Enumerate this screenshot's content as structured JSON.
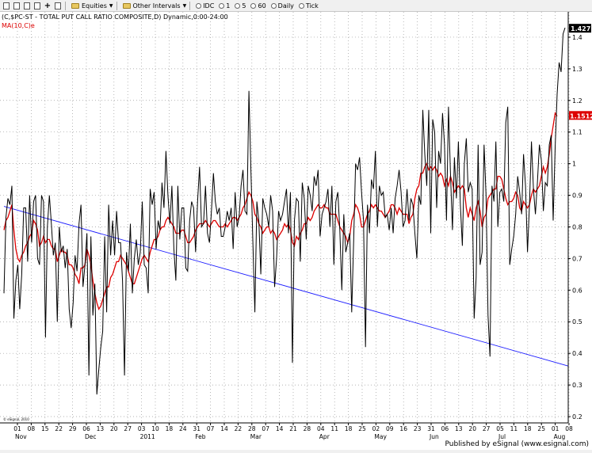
{
  "toolbar": {
    "equities_label": "Equities",
    "other_intervals_label": "Other Intervals",
    "intervals": [
      "IDC",
      "1",
      "5",
      "60",
      "Daily",
      "Tick"
    ]
  },
  "colors": {
    "price": "#000000",
    "ma": "#dd0000",
    "trend": "#1a1aff",
    "grid": "#9a9a9a"
  },
  "chart_data": {
    "type": "line",
    "title": "(C,$PC-ST - TOTAL PUT CALL RATIO COMPOSITE,D) Dynamic,0:00-24:00",
    "subtitle": "MA(10,C)e",
    "y_ticks": [
      "0.2",
      "0.3",
      "0.4",
      "0.5",
      "0.6",
      "0.7",
      "0.8",
      "0.9",
      "1",
      "1.1",
      "1.2",
      "1.3",
      "1.4"
    ],
    "ylim": [
      0.18,
      1.48
    ],
    "x_ticks": [
      "01",
      "08",
      "15",
      "22",
      "29",
      "06",
      "13",
      "20",
      "27",
      "03",
      "10",
      "18",
      "24",
      "31",
      "07",
      "14",
      "22",
      "28",
      "07",
      "14",
      "21",
      "28",
      "04",
      "11",
      "18",
      "25",
      "02",
      "09",
      "16",
      "23",
      "31",
      "06",
      "13",
      "20",
      "27",
      "05",
      "11",
      "18",
      "25",
      "01",
      "08"
    ],
    "month_labels": [
      "Nov",
      "Dec",
      "2011",
      "Feb",
      "Mar",
      "Apr",
      "May",
      "Jun",
      "Jul",
      "Aug"
    ],
    "last_price_label": "1.427",
    "ma_label": "1.1512",
    "copyright": "© eSignal, 2010",
    "footer": "Published by eSignal (www.esignal.com)",
    "series": [
      {
        "role": "price",
        "values": [
          0.59,
          0.83,
          0.89,
          0.87,
          0.93,
          0.51,
          0.63,
          0.68,
          0.54,
          0.65,
          0.86,
          0.86,
          0.69,
          0.9,
          0.75,
          0.88,
          0.9,
          0.7,
          0.68,
          0.9,
          0.88,
          0.45,
          0.8,
          0.9,
          0.81,
          0.71,
          0.75,
          0.5,
          0.8,
          0.72,
          0.74,
          0.67,
          0.73,
          0.54,
          0.48,
          0.56,
          0.71,
          0.66,
          0.81,
          0.87,
          0.61,
          0.68,
          0.78,
          0.33,
          0.77,
          0.52,
          0.62,
          0.27,
          0.35,
          0.42,
          0.47,
          0.77,
          0.53,
          0.87,
          0.71,
          0.82,
          0.71,
          0.85,
          0.75,
          0.75,
          0.63,
          0.33,
          0.72,
          0.66,
          0.81,
          0.59,
          0.7,
          0.76,
          0.68,
          0.72,
          0.88,
          0.68,
          0.67,
          0.59,
          0.92,
          0.87,
          0.91,
          0.73,
          0.82,
          0.79,
          0.94,
          0.86,
          1.04,
          0.9,
          0.81,
          0.93,
          0.73,
          0.63,
          0.93,
          0.76,
          0.86,
          0.86,
          0.67,
          0.66,
          0.82,
          0.88,
          0.86,
          0.72,
          0.88,
          0.99,
          0.8,
          0.81,
          0.93,
          0.78,
          0.75,
          0.85,
          0.97,
          0.88,
          0.84,
          0.86,
          0.77,
          0.77,
          0.8,
          0.85,
          0.82,
          0.86,
          0.73,
          0.91,
          0.8,
          0.83,
          0.93,
          0.98,
          0.85,
          0.84,
          1.23,
          0.98,
          0.75,
          0.53,
          0.88,
          0.82,
          0.65,
          0.89,
          0.86,
          0.84,
          0.8,
          0.9,
          0.85,
          0.61,
          0.7,
          0.85,
          0.82,
          0.84,
          0.88,
          0.92,
          0.78,
          0.91,
          0.37,
          0.82,
          0.89,
          0.88,
          0.69,
          0.94,
          0.89,
          0.76,
          0.93,
          0.9,
          0.85,
          0.96,
          0.93,
          0.98,
          0.77,
          0.84,
          0.86,
          0.88,
          0.92,
          0.8,
          0.93,
          0.68,
          0.88,
          0.91,
          0.79,
          0.6,
          0.84,
          0.72,
          0.75,
          0.78,
          0.53,
          0.76,
          1.0,
          0.98,
          1.02,
          0.91,
          0.82,
          0.42,
          0.87,
          0.78,
          0.95,
          0.92,
          1.04,
          0.8,
          0.93,
          0.9,
          0.91,
          0.83,
          0.84,
          0.79,
          0.86,
          0.78,
          0.89,
          0.93,
          0.98,
          0.91,
          0.8,
          0.82,
          0.92,
          0.82,
          0.89,
          0.87,
          0.78,
          0.7,
          0.9,
          0.87,
          1.17,
          1.03,
          0.93,
          1.17,
          0.78,
          1.14,
          1.1,
          0.86,
          1.04,
          1.0,
          1.16,
          1.06,
          0.82,
          1.18,
          0.97,
          0.79,
          1.02,
          0.89,
          1.07,
          0.87,
          0.74,
          1.0,
          1.08,
          0.91,
          0.94,
          0.92,
          0.51,
          0.64,
          1.06,
          0.68,
          0.72,
          1.06,
          0.9,
          0.52,
          0.39,
          0.93,
          0.88,
          1.07,
          0.8,
          0.91,
          0.92,
          0.88,
          1.13,
          1.18,
          0.68,
          0.73,
          0.77,
          0.84,
          0.96,
          0.91,
          0.84,
          1.03,
          0.93,
          0.72,
          0.87,
          1.07,
          0.92,
          0.84,
          0.94,
          1.06,
          1.01,
          0.85,
          0.94,
          0.93,
          1.06,
          1.09,
          0.82,
          1.05,
          1.22,
          1.32,
          1.29,
          1.41,
          1.43
        ]
      },
      {
        "role": "ma",
        "values": [
          0.79,
          0.82,
          0.83,
          0.85,
          0.87,
          0.79,
          0.73,
          0.7,
          0.69,
          0.71,
          0.72,
          0.74,
          0.75,
          0.77,
          0.78,
          0.82,
          0.81,
          0.79,
          0.74,
          0.75,
          0.77,
          0.75,
          0.76,
          0.76,
          0.74,
          0.73,
          0.73,
          0.69,
          0.71,
          0.73,
          0.72,
          0.72,
          0.71,
          0.68,
          0.68,
          0.67,
          0.65,
          0.64,
          0.62,
          0.67,
          0.67,
          0.68,
          0.73,
          0.71,
          0.68,
          0.63,
          0.59,
          0.56,
          0.54,
          0.55,
          0.57,
          0.59,
          0.61,
          0.61,
          0.64,
          0.65,
          0.67,
          0.69,
          0.69,
          0.71,
          0.7,
          0.69,
          0.68,
          0.66,
          0.64,
          0.62,
          0.62,
          0.64,
          0.66,
          0.68,
          0.7,
          0.71,
          0.7,
          0.69,
          0.72,
          0.74,
          0.76,
          0.76,
          0.77,
          0.79,
          0.8,
          0.8,
          0.82,
          0.83,
          0.82,
          0.81,
          0.8,
          0.78,
          0.78,
          0.78,
          0.79,
          0.79,
          0.77,
          0.75,
          0.75,
          0.76,
          0.77,
          0.79,
          0.8,
          0.81,
          0.81,
          0.81,
          0.82,
          0.81,
          0.8,
          0.81,
          0.82,
          0.82,
          0.81,
          0.8,
          0.8,
          0.8,
          0.81,
          0.8,
          0.81,
          0.82,
          0.83,
          0.83,
          0.82,
          0.83,
          0.84,
          0.86,
          0.87,
          0.89,
          0.91,
          0.9,
          0.88,
          0.84,
          0.83,
          0.81,
          0.8,
          0.78,
          0.79,
          0.8,
          0.8,
          0.78,
          0.79,
          0.78,
          0.76,
          0.77,
          0.78,
          0.79,
          0.81,
          0.8,
          0.81,
          0.79,
          0.75,
          0.74,
          0.77,
          0.76,
          0.78,
          0.79,
          0.81,
          0.81,
          0.83,
          0.82,
          0.83,
          0.85,
          0.86,
          0.87,
          0.86,
          0.86,
          0.87,
          0.86,
          0.86,
          0.84,
          0.84,
          0.84,
          0.84,
          0.82,
          0.8,
          0.79,
          0.78,
          0.77,
          0.75,
          0.77,
          0.82,
          0.84,
          0.87,
          0.86,
          0.84,
          0.8,
          0.8,
          0.82,
          0.84,
          0.85,
          0.87,
          0.86,
          0.87,
          0.86,
          0.85,
          0.85,
          0.84,
          0.83,
          0.84,
          0.85,
          0.87,
          0.87,
          0.86,
          0.84,
          0.86,
          0.85,
          0.84,
          0.84,
          0.84,
          0.81,
          0.83,
          0.84,
          0.89,
          0.92,
          0.93,
          0.97,
          0.97,
          0.99,
          1.0,
          0.98,
          0.99,
          0.98,
          0.99,
          0.98,
          0.96,
          0.97,
          0.96,
          0.93,
          0.95,
          0.93,
          0.96,
          0.94,
          0.91,
          0.92,
          0.93,
          0.92,
          0.93,
          0.92,
          0.86,
          0.83,
          0.86,
          0.84,
          0.82,
          0.86,
          0.88,
          0.85,
          0.8,
          0.83,
          0.84,
          0.89,
          0.9,
          0.91,
          0.92,
          0.92,
          0.96,
          0.96,
          0.95,
          0.92,
          0.89,
          0.87,
          0.88,
          0.88,
          0.89,
          0.91,
          0.9,
          0.86,
          0.85,
          0.88,
          0.87,
          0.86,
          0.87,
          0.9,
          0.92,
          0.91,
          0.92,
          0.93,
          0.96,
          0.99,
          0.97,
          0.99,
          1.03,
          1.08,
          1.12,
          1.16,
          1.15
        ]
      },
      {
        "role": "trend",
        "x_range": [
          0,
          276
        ],
        "values": [
          0.865,
          0.36
        ]
      }
    ]
  }
}
